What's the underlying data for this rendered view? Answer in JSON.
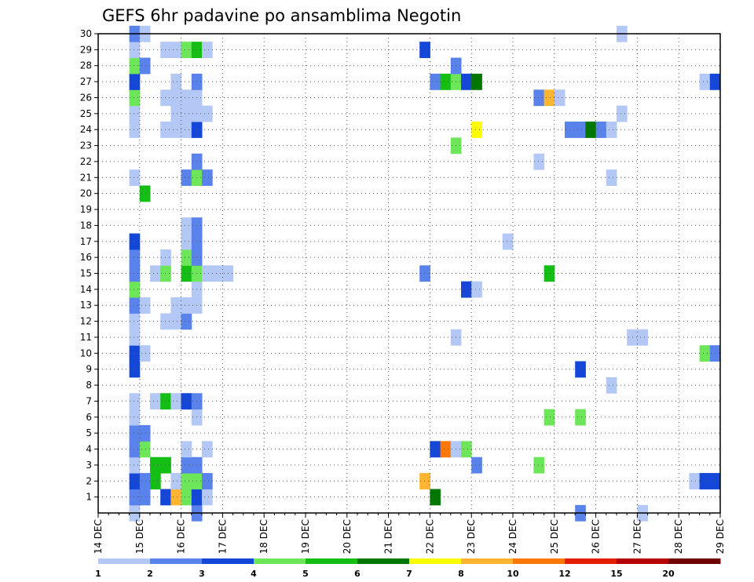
{
  "chart_data": {
    "type": "heatmap",
    "title": "GEFS 6hr padavine po ansamblima Negotin",
    "xlabel": "",
    "ylabel": "",
    "x_tick_labels": [
      "14 DEC",
      "15 DEC",
      "16 DEC",
      "17 DEC",
      "18 DEC",
      "19 DEC",
      "20 DEC",
      "21 DEC",
      "22 DEC",
      "23 DEC",
      "24 DEC",
      "25 DEC",
      "26 DEC",
      "27 DEC",
      "28 DEC",
      "29 DEC"
    ],
    "y_tick_labels": [
      "1",
      "2",
      "3",
      "4",
      "5",
      "6",
      "7",
      "8",
      "9",
      "10",
      "11",
      "12",
      "13",
      "14",
      "15",
      "16",
      "17",
      "18",
      "19",
      "20",
      "21",
      "22",
      "23",
      "24",
      "25",
      "26",
      "27",
      "28",
      "29",
      "30"
    ],
    "x_range_days": [
      0,
      15
    ],
    "y_range": [
      0,
      30
    ],
    "grid": true,
    "color_levels": [
      1,
      2,
      3,
      4,
      5,
      6,
      7,
      8,
      10,
      12,
      15,
      20
    ],
    "colors": [
      "#b4c8f5",
      "#5a82eb",
      "#1446d7",
      "#6ee65a",
      "#14be14",
      "#007800",
      "#ffff00",
      "#ffb432",
      "#ff7800",
      "#e61e00",
      "#b40000",
      "#6e0000"
    ],
    "legend_labels": [
      "1",
      "2",
      "3",
      "4",
      "5",
      "6",
      "7",
      "8",
      "10",
      "12",
      "15",
      "20"
    ],
    "cells_note": "each cell = [time_step_from_14_DEC_00Z_in_6h_steps, ensemble_member, color_class_index]",
    "cells": [
      [
        3,
        0,
        0
      ],
      [
        3,
        1,
        1
      ],
      [
        3,
        2,
        2
      ],
      [
        3,
        3,
        0
      ],
      [
        3,
        4,
        1
      ],
      [
        3,
        5,
        1
      ],
      [
        3,
        6,
        0
      ],
      [
        3,
        7,
        0
      ],
      [
        3,
        9,
        2
      ],
      [
        3,
        10,
        2
      ],
      [
        3,
        11,
        0
      ],
      [
        3,
        12,
        0
      ],
      [
        3,
        13,
        1
      ],
      [
        3,
        14,
        3
      ],
      [
        3,
        15,
        1
      ],
      [
        3,
        16,
        1
      ],
      [
        3,
        17,
        2
      ],
      [
        3,
        21,
        0
      ],
      [
        3,
        24,
        0
      ],
      [
        3,
        25,
        0
      ],
      [
        3,
        26,
        3
      ],
      [
        3,
        27,
        2
      ],
      [
        3,
        28,
        3
      ],
      [
        3,
        29,
        0
      ],
      [
        3,
        30,
        1
      ],
      [
        4,
        1,
        1
      ],
      [
        4,
        2,
        1
      ],
      [
        4,
        4,
        3
      ],
      [
        4,
        5,
        1
      ],
      [
        4,
        10,
        0
      ],
      [
        4,
        13,
        0
      ],
      [
        4,
        20,
        4
      ],
      [
        4,
        28,
        1
      ],
      [
        4,
        30,
        0
      ],
      [
        5,
        2,
        4
      ],
      [
        5,
        3,
        4
      ],
      [
        5,
        7,
        0
      ],
      [
        5,
        15,
        0
      ],
      [
        6,
        1,
        2
      ],
      [
        6,
        3,
        4
      ],
      [
        6,
        7,
        4
      ],
      [
        6,
        12,
        0
      ],
      [
        6,
        15,
        3
      ],
      [
        6,
        16,
        0
      ],
      [
        6,
        24,
        0
      ],
      [
        6,
        26,
        0
      ],
      [
        6,
        29,
        0
      ],
      [
        7,
        1,
        7
      ],
      [
        7,
        2,
        0
      ],
      [
        7,
        7,
        0
      ],
      [
        7,
        12,
        0
      ],
      [
        7,
        13,
        0
      ],
      [
        7,
        24,
        0
      ],
      [
        7,
        25,
        0
      ],
      [
        7,
        26,
        0
      ],
      [
        7,
        27,
        0
      ],
      [
        7,
        29,
        0
      ],
      [
        8,
        1,
        3
      ],
      [
        8,
        2,
        3
      ],
      [
        8,
        3,
        1
      ],
      [
        8,
        4,
        0
      ],
      [
        8,
        7,
        2
      ],
      [
        8,
        12,
        1
      ],
      [
        8,
        13,
        0
      ],
      [
        8,
        15,
        4
      ],
      [
        8,
        16,
        3
      ],
      [
        8,
        17,
        0
      ],
      [
        8,
        18,
        0
      ],
      [
        8,
        21,
        1
      ],
      [
        8,
        24,
        0
      ],
      [
        8,
        25,
        0
      ],
      [
        8,
        26,
        0
      ],
      [
        8,
        29,
        3
      ],
      [
        9,
        0,
        1
      ],
      [
        9,
        1,
        2
      ],
      [
        9,
        2,
        3
      ],
      [
        9,
        3,
        1
      ],
      [
        9,
        6,
        0
      ],
      [
        9,
        7,
        1
      ],
      [
        9,
        13,
        0
      ],
      [
        9,
        14,
        0
      ],
      [
        9,
        15,
        3
      ],
      [
        9,
        16,
        1
      ],
      [
        9,
        17,
        1
      ],
      [
        9,
        18,
        1
      ],
      [
        9,
        21,
        3
      ],
      [
        9,
        22,
        1
      ],
      [
        9,
        24,
        2
      ],
      [
        9,
        25,
        0
      ],
      [
        9,
        26,
        0
      ],
      [
        9,
        27,
        1
      ],
      [
        9,
        29,
        4
      ],
      [
        10,
        1,
        0
      ],
      [
        10,
        2,
        1
      ],
      [
        10,
        4,
        0
      ],
      [
        10,
        15,
        0
      ],
      [
        10,
        21,
        1
      ],
      [
        10,
        25,
        0
      ],
      [
        10,
        29,
        0
      ],
      [
        11,
        15,
        0
      ],
      [
        12,
        15,
        0
      ],
      [
        31,
        2,
        7
      ],
      [
        31,
        15,
        1
      ],
      [
        31,
        29,
        2
      ],
      [
        32,
        1,
        5
      ],
      [
        32,
        4,
        2
      ],
      [
        32,
        27,
        1
      ],
      [
        33,
        4,
        8
      ],
      [
        33,
        27,
        4
      ],
      [
        34,
        4,
        0
      ],
      [
        34,
        11,
        0
      ],
      [
        34,
        23,
        3
      ],
      [
        34,
        27,
        3
      ],
      [
        34,
        28,
        1
      ],
      [
        35,
        4,
        3
      ],
      [
        35,
        14,
        2
      ],
      [
        35,
        27,
        2
      ],
      [
        36,
        3,
        1
      ],
      [
        36,
        14,
        0
      ],
      [
        36,
        24,
        6
      ],
      [
        36,
        27,
        5
      ],
      [
        39,
        17,
        0
      ],
      [
        42,
        3,
        3
      ],
      [
        42,
        22,
        0
      ],
      [
        42,
        26,
        1
      ],
      [
        43,
        6,
        3
      ],
      [
        43,
        15,
        4
      ],
      [
        43,
        26,
        7
      ],
      [
        44,
        26,
        0
      ],
      [
        45,
        24,
        1
      ],
      [
        46,
        0,
        1
      ],
      [
        46,
        6,
        3
      ],
      [
        46,
        9,
        2
      ],
      [
        46,
        24,
        1
      ],
      [
        47,
        24,
        5
      ],
      [
        48,
        24,
        1
      ],
      [
        49,
        8,
        0
      ],
      [
        49,
        21,
        0
      ],
      [
        49,
        24,
        0
      ],
      [
        50,
        25,
        0
      ],
      [
        50,
        30,
        0
      ],
      [
        51,
        11,
        0
      ],
      [
        52,
        0,
        0
      ],
      [
        52,
        11,
        0
      ],
      [
        57,
        2,
        0
      ],
      [
        58,
        2,
        2
      ],
      [
        58,
        10,
        3
      ],
      [
        58,
        27,
        0
      ],
      [
        59,
        2,
        2
      ],
      [
        59,
        10,
        1
      ],
      [
        59,
        27,
        2
      ]
    ]
  }
}
